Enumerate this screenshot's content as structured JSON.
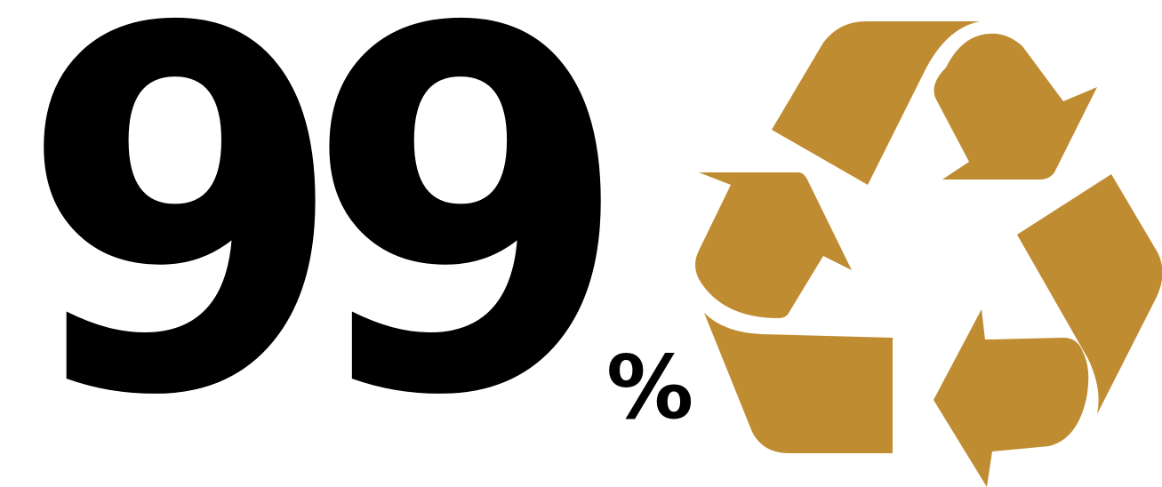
{
  "stat": {
    "value": "99",
    "unit": "%"
  },
  "icon": {
    "name": "recycle-icon",
    "color": "#BF8C31"
  },
  "colors": {
    "text": "#000000",
    "background": "#FFFFFF"
  }
}
